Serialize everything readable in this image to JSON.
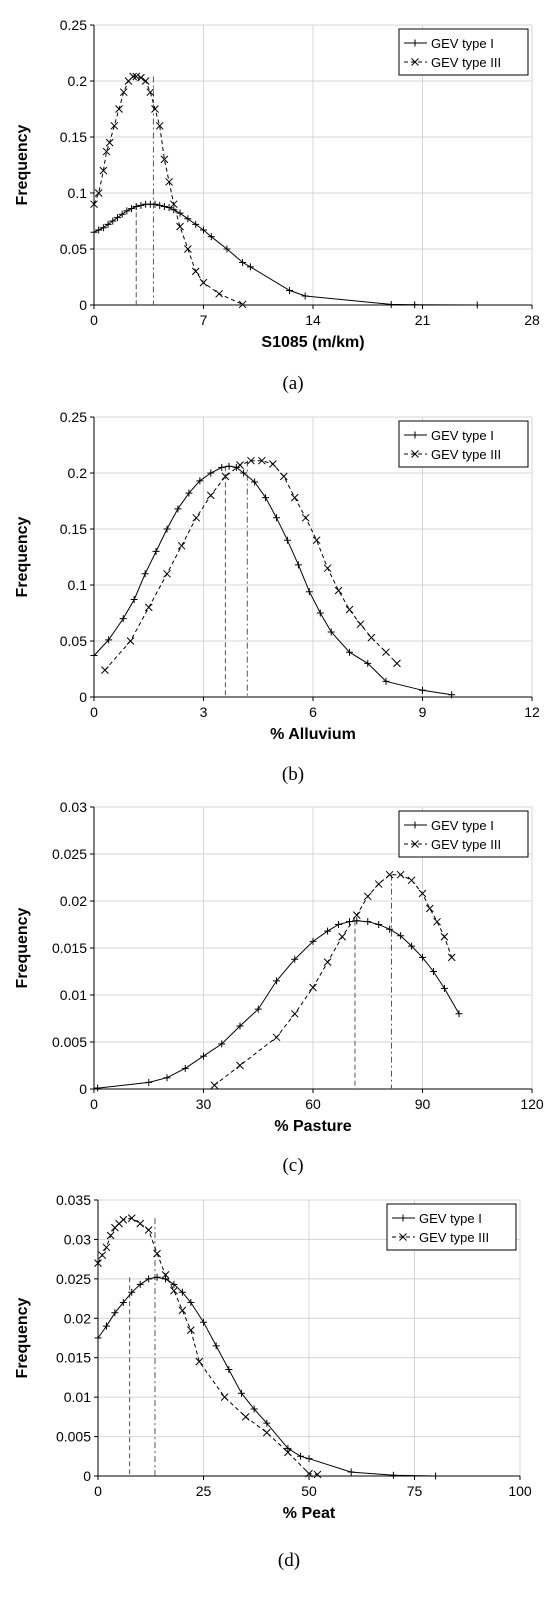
{
  "chart_data": [
    {
      "type": "line",
      "caption": "(a)",
      "xlabel": "S1085 (m/km)",
      "ylabel": "Frequency",
      "xlim": [
        0,
        28
      ],
      "ylim": [
        0,
        0.25
      ],
      "xticks": [
        0,
        7,
        14,
        21,
        28
      ],
      "yticks": [
        0,
        0.05,
        0.1,
        0.15,
        0.2,
        0.25
      ],
      "xtick_labels": [
        "0",
        "7",
        "14",
        "21",
        "28"
      ],
      "ytick_labels": [
        "0",
        "0.05",
        "0.1",
        "0.15",
        "0.2",
        "0.25"
      ],
      "grid": true,
      "legend_position": "top-right",
      "mode_lines": [
        2.7,
        3.8
      ],
      "series": [
        {
          "name": "GEV type I",
          "marker": "plus",
          "line": "solid",
          "points": [
            [
              0,
              0.065
            ],
            [
              0.3,
              0.067
            ],
            [
              0.6,
              0.069
            ],
            [
              0.9,
              0.072
            ],
            [
              1.2,
              0.075
            ],
            [
              1.5,
              0.078
            ],
            [
              1.8,
              0.081
            ],
            [
              2.1,
              0.084
            ],
            [
              2.4,
              0.086
            ],
            [
              2.7,
              0.088
            ],
            [
              3.0,
              0.089
            ],
            [
              3.3,
              0.09
            ],
            [
              3.6,
              0.09
            ],
            [
              3.9,
              0.09
            ],
            [
              4.2,
              0.089
            ],
            [
              4.5,
              0.088
            ],
            [
              4.8,
              0.087
            ],
            [
              5.1,
              0.085
            ],
            [
              5.5,
              0.082
            ],
            [
              6.0,
              0.077
            ],
            [
              6.5,
              0.072
            ],
            [
              7.0,
              0.067
            ],
            [
              7.5,
              0.061
            ],
            [
              8.5,
              0.05
            ],
            [
              9.5,
              0.038
            ],
            [
              10.0,
              0.034
            ],
            [
              12.5,
              0.013
            ],
            [
              13.5,
              0.008
            ],
            [
              19.0,
              0.0005
            ],
            [
              20.5,
              0.0002
            ],
            [
              24.5,
              0.0
            ]
          ]
        },
        {
          "name": "GEV type III",
          "marker": "x",
          "line": "dashed",
          "points": [
            [
              0,
              0.09
            ],
            [
              0.3,
              0.1
            ],
            [
              0.6,
              0.12
            ],
            [
              0.8,
              0.137
            ],
            [
              1.0,
              0.145
            ],
            [
              1.3,
              0.16
            ],
            [
              1.6,
              0.175
            ],
            [
              1.9,
              0.19
            ],
            [
              2.2,
              0.2
            ],
            [
              2.5,
              0.204
            ],
            [
              2.7,
              0.204
            ],
            [
              3.0,
              0.203
            ],
            [
              3.3,
              0.2
            ],
            [
              3.6,
              0.19
            ],
            [
              3.9,
              0.175
            ],
            [
              4.2,
              0.16
            ],
            [
              4.5,
              0.13
            ],
            [
              4.8,
              0.11
            ],
            [
              5.1,
              0.09
            ],
            [
              5.5,
              0.07
            ],
            [
              6.0,
              0.05
            ],
            [
              6.5,
              0.03
            ],
            [
              7.0,
              0.02
            ],
            [
              8.0,
              0.01
            ],
            [
              9.5,
              0.0005
            ]
          ]
        }
      ]
    },
    {
      "type": "line",
      "caption": "(b)",
      "xlabel": "% Alluvium",
      "ylabel": "Frequency",
      "xlim": [
        0,
        12
      ],
      "ylim": [
        0,
        0.25
      ],
      "xticks": [
        0,
        3,
        6,
        9,
        12
      ],
      "yticks": [
        0,
        0.05,
        0.1,
        0.15,
        0.2,
        0.25
      ],
      "xtick_labels": [
        "0",
        "3",
        "6",
        "9",
        "12"
      ],
      "ytick_labels": [
        "0",
        "0.05",
        "0.1",
        "0.15",
        "0.2",
        "0.25"
      ],
      "grid": true,
      "legend_position": "top-right",
      "mode_lines": [
        3.6,
        4.2
      ],
      "series": [
        {
          "name": "GEV type I",
          "marker": "plus",
          "line": "solid",
          "points": [
            [
              0,
              0.037
            ],
            [
              0.4,
              0.051
            ],
            [
              0.8,
              0.07
            ],
            [
              1.1,
              0.087
            ],
            [
              1.4,
              0.11
            ],
            [
              1.7,
              0.13
            ],
            [
              2.0,
              0.15
            ],
            [
              2.3,
              0.168
            ],
            [
              2.6,
              0.182
            ],
            [
              2.9,
              0.193
            ],
            [
              3.2,
              0.2
            ],
            [
              3.5,
              0.205
            ],
            [
              3.7,
              0.206
            ],
            [
              3.9,
              0.205
            ],
            [
              4.1,
              0.2
            ],
            [
              4.4,
              0.192
            ],
            [
              4.7,
              0.178
            ],
            [
              5.0,
              0.16
            ],
            [
              5.3,
              0.14
            ],
            [
              5.6,
              0.118
            ],
            [
              5.9,
              0.094
            ],
            [
              6.2,
              0.075
            ],
            [
              6.5,
              0.058
            ],
            [
              7.0,
              0.04
            ],
            [
              7.5,
              0.03
            ],
            [
              8.0,
              0.014
            ],
            [
              9.0,
              0.006
            ],
            [
              9.8,
              0.002
            ]
          ]
        },
        {
          "name": "GEV type III",
          "marker": "x",
          "line": "dashed",
          "points": [
            [
              0.3,
              0.024
            ],
            [
              1.0,
              0.05
            ],
            [
              1.5,
              0.08
            ],
            [
              2.0,
              0.11
            ],
            [
              2.4,
              0.135
            ],
            [
              2.8,
              0.16
            ],
            [
              3.2,
              0.18
            ],
            [
              3.6,
              0.197
            ],
            [
              4.0,
              0.207
            ],
            [
              4.3,
              0.211
            ],
            [
              4.6,
              0.211
            ],
            [
              4.9,
              0.208
            ],
            [
              5.2,
              0.197
            ],
            [
              5.5,
              0.178
            ],
            [
              5.8,
              0.16
            ],
            [
              6.1,
              0.14
            ],
            [
              6.4,
              0.115
            ],
            [
              6.7,
              0.095
            ],
            [
              7.0,
              0.078
            ],
            [
              7.3,
              0.065
            ],
            [
              7.6,
              0.053
            ],
            [
              8.0,
              0.04
            ],
            [
              8.3,
              0.03
            ]
          ]
        }
      ]
    },
    {
      "type": "line",
      "caption": "(c)",
      "xlabel": "% Pasture",
      "ylabel": "Frequency",
      "xlim": [
        0,
        120
      ],
      "ylim": [
        0,
        0.03
      ],
      "xticks": [
        0,
        30,
        60,
        90,
        120
      ],
      "yticks": [
        0,
        0.005,
        0.01,
        0.015,
        0.02,
        0.025,
        0.03
      ],
      "xtick_labels": [
        "0",
        "30",
        "60",
        "90",
        "120"
      ],
      "ytick_labels": [
        "0",
        "0.005",
        "0.01",
        "0.015",
        "0.02",
        "0.025",
        "0.03"
      ],
      "grid": true,
      "legend_position": "top-right",
      "mode_lines": [
        71.5,
        81.5
      ],
      "series": [
        {
          "name": "GEV type I",
          "marker": "plus",
          "line": "solid",
          "points": [
            [
              1,
              0.0001
            ],
            [
              15,
              0.0007
            ],
            [
              20,
              0.0012
            ],
            [
              25,
              0.0022
            ],
            [
              30,
              0.0035
            ],
            [
              35,
              0.0048
            ],
            [
              40,
              0.0067
            ],
            [
              45,
              0.0085
            ],
            [
              50,
              0.0115
            ],
            [
              55,
              0.0138
            ],
            [
              60,
              0.0157
            ],
            [
              64,
              0.0168
            ],
            [
              67,
              0.0175
            ],
            [
              70,
              0.0178
            ],
            [
              72,
              0.0179
            ],
            [
              75,
              0.0178
            ],
            [
              78,
              0.0175
            ],
            [
              81,
              0.017
            ],
            [
              84,
              0.0163
            ],
            [
              87,
              0.0152
            ],
            [
              90,
              0.014
            ],
            [
              93,
              0.0125
            ],
            [
              96,
              0.0107
            ],
            [
              100,
              0.008
            ]
          ]
        },
        {
          "name": "GEV type III",
          "marker": "x",
          "line": "dashed",
          "points": [
            [
              33,
              0.0004
            ],
            [
              40,
              0.0025
            ],
            [
              50,
              0.0055
            ],
            [
              55,
              0.008
            ],
            [
              60,
              0.0108
            ],
            [
              64,
              0.0135
            ],
            [
              68,
              0.0162
            ],
            [
              72,
              0.0185
            ],
            [
              75,
              0.0205
            ],
            [
              78,
              0.0218
            ],
            [
              81,
              0.0228
            ],
            [
              84,
              0.0228
            ],
            [
              87,
              0.0222
            ],
            [
              90,
              0.0208
            ],
            [
              92,
              0.0192
            ],
            [
              94,
              0.0178
            ],
            [
              96,
              0.0162
            ],
            [
              98,
              0.014
            ]
          ]
        }
      ]
    },
    {
      "type": "line",
      "caption": "(d)",
      "xlabel": "% Peat",
      "ylabel": "Frequency",
      "xlim": [
        0,
        100
      ],
      "ylim": [
        0,
        0.035
      ],
      "xticks": [
        0,
        25,
        50,
        75,
        100
      ],
      "yticks": [
        0,
        0.005,
        0.01,
        0.015,
        0.02,
        0.025,
        0.03,
        0.035
      ],
      "xtick_labels": [
        "0",
        "25",
        "50",
        "75",
        "100"
      ],
      "ytick_labels": [
        "0",
        "0.005",
        "0.01",
        "0.015",
        "0.02",
        "0.025",
        "0.03",
        "0.035"
      ],
      "grid": true,
      "legend_position": "top-right",
      "mode_lines": [
        7.5,
        13.5
      ],
      "series": [
        {
          "name": "GEV type I",
          "marker": "plus",
          "line": "solid",
          "points": [
            [
              0,
              0.0175
            ],
            [
              2,
              0.019
            ],
            [
              4,
              0.0207
            ],
            [
              6,
              0.022
            ],
            [
              8,
              0.0233
            ],
            [
              10,
              0.0243
            ],
            [
              12,
              0.025
            ],
            [
              14,
              0.0252
            ],
            [
              16,
              0.025
            ],
            [
              18,
              0.0243
            ],
            [
              20,
              0.0233
            ],
            [
              22,
              0.022
            ],
            [
              25,
              0.0195
            ],
            [
              28,
              0.0165
            ],
            [
              31,
              0.0135
            ],
            [
              34,
              0.0105
            ],
            [
              37,
              0.0085
            ],
            [
              40,
              0.0067
            ],
            [
              45,
              0.0035
            ],
            [
              48,
              0.0025
            ],
            [
              50,
              0.0022
            ],
            [
              60,
              0.0005
            ],
            [
              70,
              0.0001
            ],
            [
              80,
              0.0
            ]
          ]
        },
        {
          "name": "GEV type III",
          "marker": "x",
          "line": "dashed",
          "points": [
            [
              0,
              0.027
            ],
            [
              1,
              0.028
            ],
            [
              2,
              0.029
            ],
            [
              3,
              0.0305
            ],
            [
              4,
              0.0315
            ],
            [
              5,
              0.032
            ],
            [
              6,
              0.0325
            ],
            [
              8,
              0.0327
            ],
            [
              10,
              0.032
            ],
            [
              12,
              0.0312
            ],
            [
              14,
              0.0282
            ],
            [
              16,
              0.0255
            ],
            [
              18,
              0.0235
            ],
            [
              20,
              0.021
            ],
            [
              22,
              0.0185
            ],
            [
              24,
              0.0145
            ],
            [
              30,
              0.01
            ],
            [
              35,
              0.0075
            ],
            [
              40,
              0.0055
            ],
            [
              45,
              0.003
            ],
            [
              50,
              0.0003
            ],
            [
              52,
              0.0002
            ]
          ]
        }
      ]
    }
  ]
}
